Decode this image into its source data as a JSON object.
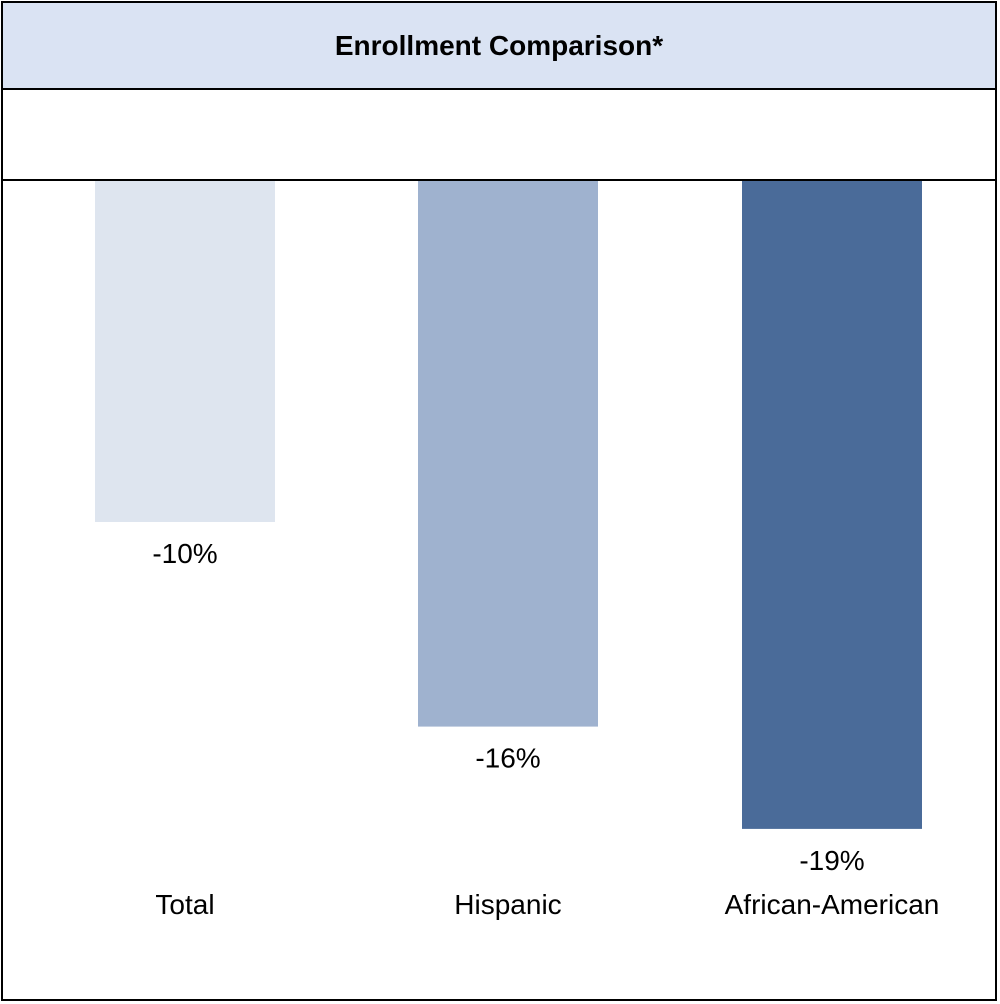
{
  "chart_data": {
    "type": "bar",
    "title": "Enrollment Comparison*",
    "categories": [
      "Total",
      "Hispanic",
      "African-American"
    ],
    "values": [
      -10,
      -16,
      -19
    ],
    "value_labels": [
      "-10%",
      "-16%",
      "-19%"
    ],
    "colors": [
      "#dee5ef",
      "#9fb2cf",
      "#4a6b99"
    ],
    "ylim": [
      -20,
      0
    ],
    "grid": false,
    "legend": "none",
    "xlabel": "",
    "ylabel": ""
  }
}
